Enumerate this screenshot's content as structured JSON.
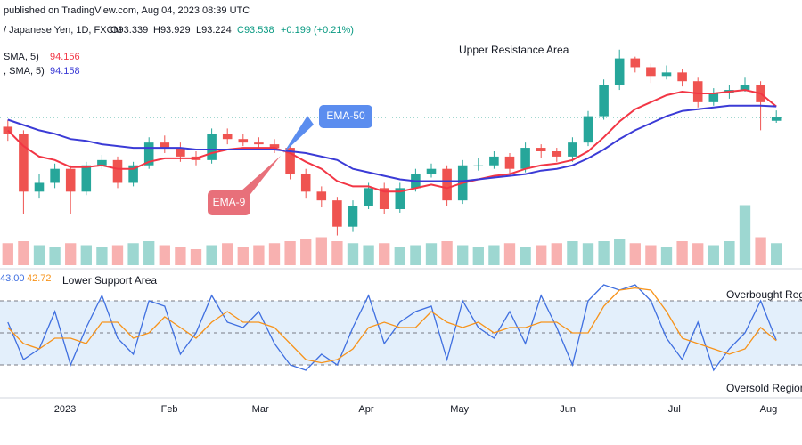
{
  "chart_data": {
    "type": "candlestick",
    "published": "published on TradingView.com, Aug 04, 2023 08:39 UTC",
    "symbol": "/ Japanese Yen, 1D, FXCM",
    "ohlc_labels": {
      "open": "O93.339",
      "high": "H93.929",
      "low": "L93.224",
      "close": "C93.538",
      "change": "+0.199 (+0.21%)"
    },
    "annotations": {
      "resistance": "Upper Resistance Area",
      "support": "Lower Support Area",
      "overbought": "Overbought Regi",
      "oversold": "Oversold Region",
      "ema50": "EMA-50",
      "ema9": "EMA-9"
    },
    "xlim": [
      -0.5,
      49.5
    ],
    "xticks": [
      {
        "value": 3.65,
        "label": "2023"
      },
      {
        "value": 10.3,
        "label": "Feb"
      },
      {
        "value": 16.1,
        "label": "Mar"
      },
      {
        "value": 22.85,
        "label": "Apr"
      },
      {
        "value": 28.8,
        "label": "May"
      },
      {
        "value": 35.7,
        "label": "Jun"
      },
      {
        "value": 42.5,
        "label": "Jul"
      },
      {
        "value": 48.5,
        "label": "Aug"
      }
    ],
    "ylim": [
      85,
      98.2
    ],
    "up_color": "#26a69a",
    "down_color": "#ef5350",
    "open": [
      93.0,
      92.6,
      89.3,
      89.8,
      90.6,
      89.3,
      90.8,
      91.1,
      89.8,
      90.8,
      92.1,
      91.8,
      91.3,
      91.1,
      92.6,
      92.3,
      92.1,
      92.0,
      91.8,
      90.3,
      89.3,
      88.8,
      87.3,
      88.5,
      89.5,
      88.3,
      89.5,
      90.3,
      90.6,
      88.8,
      90.8,
      90.8,
      91.3,
      90.6,
      91.8,
      91.6,
      91.3,
      92.1,
      93.6,
      95.4,
      96.9,
      96.4,
      95.9,
      96.1,
      95.6,
      94.4,
      94.9,
      95.1,
      95.4,
      93.339
    ],
    "high": [
      93.4,
      92.8,
      90.3,
      90.9,
      90.8,
      91.0,
      91.4,
      91.3,
      91.0,
      92.4,
      92.5,
      92.1,
      91.6,
      92.9,
      92.9,
      92.6,
      92.4,
      92.3,
      91.9,
      90.6,
      89.6,
      89.0,
      88.8,
      89.8,
      89.8,
      89.8,
      90.6,
      90.9,
      90.8,
      91.1,
      91.2,
      91.6,
      91.5,
      92.1,
      92.0,
      91.8,
      92.4,
      93.9,
      95.7,
      97.4,
      97.0,
      96.6,
      96.5,
      96.3,
      95.8,
      95.2,
      95.4,
      95.8,
      95.6,
      93.929
    ],
    "low": [
      92.2,
      88.0,
      88.9,
      89.5,
      88.0,
      89.1,
      90.6,
      89.5,
      89.6,
      90.6,
      91.5,
      91.0,
      90.8,
      90.9,
      92.0,
      91.9,
      91.7,
      91.5,
      90.0,
      88.9,
      88.4,
      86.8,
      87.0,
      88.3,
      88.0,
      88.1,
      89.3,
      90.1,
      88.5,
      88.6,
      90.5,
      90.6,
      90.3,
      90.4,
      91.2,
      91.0,
      91.0,
      91.9,
      93.4,
      95.1,
      96.1,
      95.5,
      95.7,
      95.3,
      94.1,
      94.2,
      94.6,
      95.0,
      92.8,
      93.224
    ],
    "close": [
      92.6,
      89.3,
      89.8,
      90.6,
      89.3,
      90.8,
      91.1,
      89.8,
      90.8,
      92.1,
      91.8,
      91.3,
      91.1,
      92.6,
      92.3,
      92.1,
      92.0,
      91.8,
      90.3,
      89.3,
      88.8,
      87.3,
      88.5,
      89.5,
      88.3,
      89.5,
      90.3,
      90.6,
      88.8,
      90.8,
      90.8,
      91.3,
      90.6,
      91.8,
      91.6,
      91.3,
      92.1,
      93.6,
      95.4,
      96.9,
      96.4,
      95.9,
      96.1,
      95.6,
      94.4,
      94.9,
      95.1,
      95.4,
      94.4,
      93.538
    ],
    "series": [
      {
        "name": "SMA, 5)",
        "legend_value": "94.156",
        "color": "#f23645",
        "values": [
          92.8,
          91.9,
          91.3,
          91.1,
          90.7,
          90.7,
          90.8,
          90.6,
          90.6,
          91.0,
          91.2,
          91.2,
          91.2,
          91.5,
          91.7,
          91.8,
          91.8,
          91.8,
          91.5,
          91.0,
          90.6,
          89.9,
          89.6,
          89.6,
          89.3,
          89.3,
          89.5,
          89.7,
          89.5,
          89.8,
          90.0,
          90.2,
          90.3,
          90.6,
          90.8,
          90.9,
          91.1,
          91.6,
          92.4,
          93.3,
          94.0,
          94.4,
          94.8,
          95.0,
          94.9,
          94.9,
          95.0,
          95.1,
          94.9,
          94.156
        ]
      },
      {
        "name": ", SMA, 5)",
        "legend_value": "94.158",
        "color": "#3b3bd6",
        "values": [
          93.4,
          93.1,
          92.8,
          92.6,
          92.3,
          92.2,
          92.0,
          91.9,
          91.8,
          91.8,
          91.8,
          91.8,
          91.7,
          91.7,
          91.7,
          91.7,
          91.7,
          91.7,
          91.6,
          91.5,
          91.3,
          91.1,
          90.6,
          90.4,
          90.2,
          90.0,
          89.9,
          89.9,
          89.9,
          89.9,
          90.0,
          90.1,
          90.2,
          90.3,
          90.5,
          90.6,
          90.8,
          91.2,
          91.7,
          92.3,
          92.8,
          93.2,
          93.6,
          93.9,
          94.0,
          94.1,
          94.2,
          94.2,
          94.2,
          94.158
        ]
      }
    ],
    "volume": [
      55,
      60,
      50,
      45,
      55,
      50,
      45,
      50,
      55,
      60,
      50,
      45,
      40,
      50,
      55,
      45,
      50,
      55,
      60,
      65,
      70,
      60,
      55,
      50,
      55,
      45,
      50,
      55,
      60,
      50,
      45,
      50,
      55,
      45,
      50,
      55,
      60,
      55,
      60,
      65,
      55,
      50,
      45,
      60,
      55,
      50,
      60,
      150,
      70,
      55
    ],
    "volume_lim": [
      0,
      100
    ],
    "oscillator": {
      "ylim": [
        0,
        100
      ],
      "levels": [
        20,
        50,
        80
      ],
      "series": [
        {
          "legend_value": "43.00",
          "color": "#3f6fe0",
          "values": [
            60,
            25,
            35,
            70,
            20,
            55,
            85,
            45,
            30,
            80,
            75,
            30,
            50,
            85,
            60,
            55,
            70,
            40,
            20,
            15,
            30,
            20,
            55,
            85,
            40,
            60,
            70,
            75,
            25,
            80,
            55,
            45,
            70,
            40,
            85,
            55,
            20,
            80,
            95,
            90,
            95,
            80,
            45,
            25,
            60,
            15,
            35,
            50,
            80,
            43
          ]
        },
        {
          "legend_value": "42.72",
          "color": "#f7931a",
          "values": [
            55,
            40,
            35,
            45,
            45,
            40,
            60,
            60,
            45,
            50,
            65,
            55,
            45,
            60,
            70,
            60,
            60,
            55,
            40,
            25,
            22,
            25,
            35,
            55,
            60,
            55,
            55,
            70,
            60,
            55,
            60,
            50,
            55,
            55,
            60,
            60,
            50,
            50,
            75,
            90,
            92,
            90,
            70,
            45,
            40,
            35,
            30,
            35,
            55,
            42.72
          ]
        }
      ]
    }
  }
}
